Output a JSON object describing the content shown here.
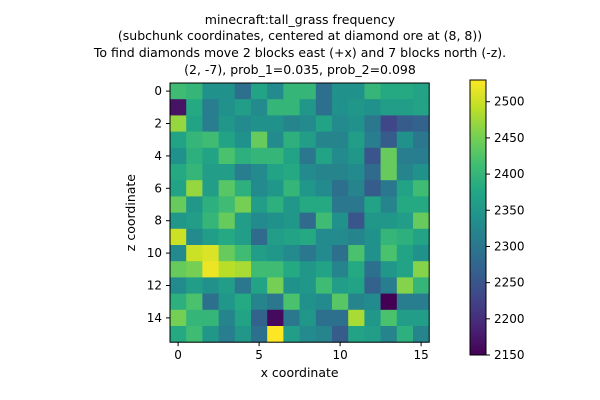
{
  "chart_data": {
    "type": "heatmap",
    "title_lines": [
      "minecraft:tall_grass frequency",
      "(subchunk coordinates, centered at diamond ore at (8, 8))",
      "To find diamonds move 2 blocks east (+x) and 7 blocks north (-z).",
      "(2, -7), prob_1=0.035, prob_2=0.098"
    ],
    "xlabel": "x coordinate",
    "ylabel": "z coordinate",
    "x_ticks": [
      0,
      5,
      10,
      15
    ],
    "y_ticks": [
      0,
      2,
      4,
      6,
      8,
      10,
      12,
      14
    ],
    "colorbar": {
      "min": 2150,
      "max": 2530,
      "ticks": [
        2150,
        2200,
        2250,
        2300,
        2350,
        2400,
        2450,
        2500
      ],
      "colormap": "viridis"
    },
    "values": [
      [
        2410,
        2400,
        2340,
        2340,
        2290,
        2370,
        2330,
        2400,
        2400,
        2290,
        2340,
        2340,
        2400,
        2380,
        2380,
        2370
      ],
      [
        2170,
        2380,
        2310,
        2340,
        2360,
        2330,
        2400,
        2400,
        2350,
        2290,
        2340,
        2350,
        2340,
        2360,
        2360,
        2370
      ],
      [
        2470,
        2370,
        2310,
        2350,
        2330,
        2340,
        2340,
        2320,
        2330,
        2370,
        2330,
        2340,
        2300,
        2230,
        2260,
        2270
      ],
      [
        2370,
        2400,
        2410,
        2370,
        2340,
        2440,
        2330,
        2390,
        2360,
        2320,
        2320,
        2360,
        2310,
        2260,
        2340,
        2300
      ],
      [
        2340,
        2390,
        2370,
        2420,
        2390,
        2400,
        2400,
        2370,
        2300,
        2370,
        2330,
        2350,
        2250,
        2440,
        2310,
        2310
      ],
      [
        2380,
        2400,
        2360,
        2360,
        2310,
        2330,
        2370,
        2380,
        2330,
        2320,
        2320,
        2330,
        2280,
        2440,
        2320,
        2340
      ],
      [
        2370,
        2470,
        2360,
        2430,
        2390,
        2330,
        2350,
        2400,
        2350,
        2330,
        2290,
        2320,
        2260,
        2300,
        2370,
        2410
      ],
      [
        2440,
        2350,
        2390,
        2410,
        2450,
        2360,
        2390,
        2350,
        2380,
        2380,
        2300,
        2300,
        2370,
        2320,
        2380,
        2380
      ],
      [
        2350,
        2360,
        2400,
        2440,
        2360,
        2330,
        2340,
        2350,
        2280,
        2410,
        2340,
        2250,
        2350,
        2350,
        2360,
        2440
      ],
      [
        2500,
        2330,
        2360,
        2380,
        2360,
        2280,
        2360,
        2370,
        2380,
        2330,
        2330,
        2320,
        2340,
        2400,
        2390,
        2370
      ],
      [
        2330,
        2500,
        2510,
        2440,
        2410,
        2360,
        2350,
        2330,
        2300,
        2330,
        2290,
        2420,
        2340,
        2420,
        2370,
        2340
      ],
      [
        2440,
        2450,
        2520,
        2490,
        2480,
        2410,
        2410,
        2380,
        2350,
        2370,
        2320,
        2380,
        2290,
        2350,
        2370,
        2460
      ],
      [
        2330,
        2360,
        2340,
        2360,
        2300,
        2370,
        2450,
        2340,
        2350,
        2410,
        2360,
        2370,
        2270,
        2310,
        2460,
        2400
      ],
      [
        2390,
        2420,
        2290,
        2350,
        2380,
        2320,
        2300,
        2420,
        2340,
        2330,
        2430,
        2320,
        2330,
        2150,
        2310,
        2310
      ],
      [
        2450,
        2400,
        2400,
        2320,
        2370,
        2270,
        2160,
        2300,
        2350,
        2290,
        2290,
        2480,
        2350,
        2420,
        2360,
        2360
      ],
      [
        2380,
        2410,
        2350,
        2310,
        2350,
        2290,
        2530,
        2360,
        2330,
        2320,
        2260,
        2370,
        2360,
        2320,
        2390,
        2320
      ]
    ]
  }
}
